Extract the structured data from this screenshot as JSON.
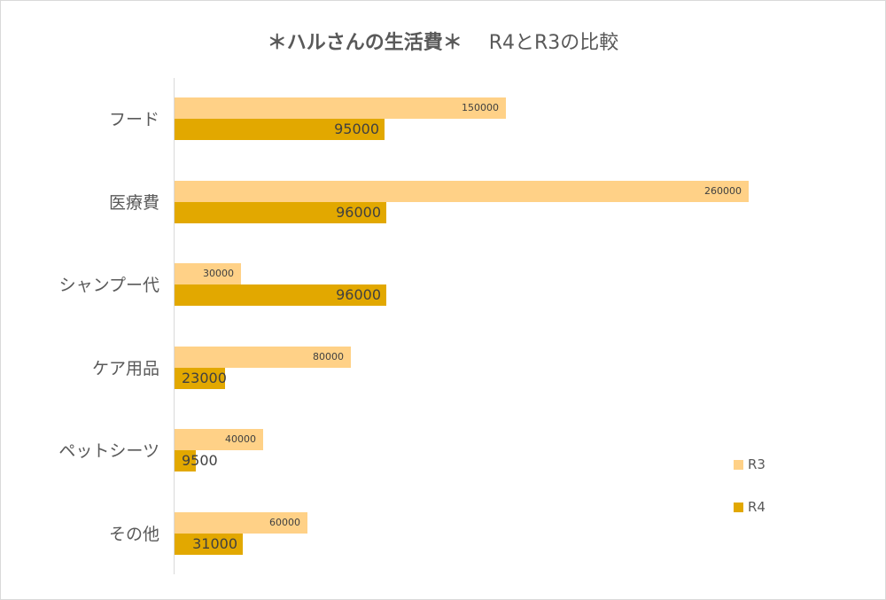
{
  "chart_data": {
    "type": "bar",
    "orientation": "horizontal",
    "title": "＊ハルさんの生活費＊",
    "subtitle": "R4とR3の比較",
    "categories": [
      "フード",
      "医療費",
      "シャンプー代",
      "ケア用品",
      "ペットシーツ",
      "その他"
    ],
    "series": [
      {
        "name": "R3",
        "color": "#ffd187",
        "values": [
          150000,
          260000,
          30000,
          80000,
          40000,
          60000
        ]
      },
      {
        "name": "R4",
        "color": "#e2a800",
        "values": [
          95000,
          96000,
          96000,
          23000,
          9500,
          31000
        ]
      }
    ],
    "xlabel": "",
    "ylabel": "",
    "grid": false,
    "legend_position": "right",
    "data_labels": true
  },
  "title": {
    "main": "＊ハルさんの生活費＊",
    "sub": "R4とR3の比較"
  },
  "labels": {
    "cats": [
      "フード",
      "医療費",
      "シャンプー代",
      "ケア用品",
      "ペットシーツ",
      "その他"
    ],
    "r3": [
      "150000",
      "260000",
      "30000",
      "80000",
      "40000",
      "60000"
    ],
    "r4": [
      "95000",
      "96000",
      "96000",
      "23000",
      "9500",
      "31000"
    ]
  },
  "legend": {
    "r3": "R3",
    "r4": "R4"
  }
}
